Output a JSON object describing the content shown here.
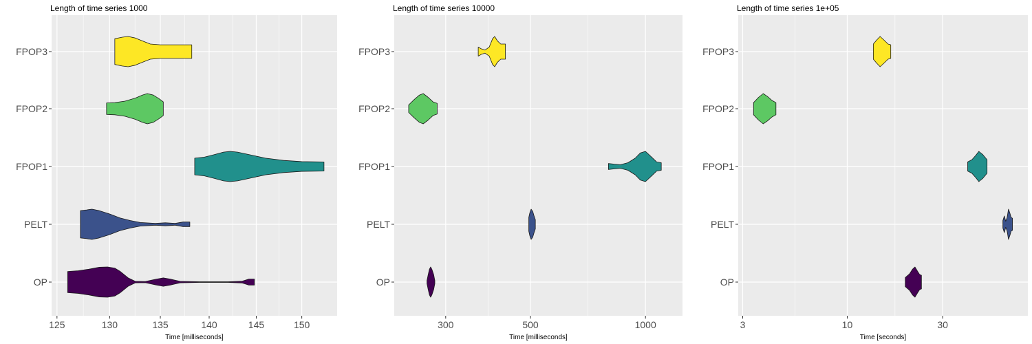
{
  "chart_data": [
    {
      "type": "violin",
      "title": "Length of time series  1000",
      "xlabel": "Time [milliseconds]",
      "ylabel": "",
      "x_scale": "log",
      "xlim": [
        124.5,
        154
      ],
      "xticks": [
        125,
        130,
        135,
        140,
        145,
        150
      ],
      "xtick_labels": [
        "125",
        "130",
        "135",
        "140",
        "145",
        "150"
      ],
      "categories": [
        "OP",
        "PELT",
        "FPOP1",
        "FPOP2",
        "FPOP3"
      ],
      "series": [
        {
          "category": "OP",
          "color": "#440154",
          "min": 126,
          "max": 144.8,
          "density": [
            [
              126,
              0.7
            ],
            [
              127,
              0.75
            ],
            [
              128,
              0.85
            ],
            [
              129,
              0.98
            ],
            [
              129.8,
              1.0
            ],
            [
              130.5,
              0.92
            ],
            [
              131,
              0.72
            ],
            [
              131.8,
              0.28
            ],
            [
              132.5,
              0.05
            ],
            [
              133.5,
              0.04
            ],
            [
              134.5,
              0.18
            ],
            [
              135.3,
              0.28
            ],
            [
              136,
              0.2
            ],
            [
              137,
              0.05
            ],
            [
              139,
              0.02
            ],
            [
              142,
              0.02
            ],
            [
              143.5,
              0.06
            ],
            [
              144.2,
              0.2
            ],
            [
              144.8,
              0.2
            ]
          ]
        },
        {
          "category": "PELT",
          "color": "#3B528B",
          "min": 127.2,
          "max": 138,
          "density": [
            [
              127.2,
              0.9
            ],
            [
              127.8,
              0.95
            ],
            [
              128.3,
              1.0
            ],
            [
              129,
              0.9
            ],
            [
              130,
              0.68
            ],
            [
              131,
              0.42
            ],
            [
              132,
              0.25
            ],
            [
              133,
              0.12
            ],
            [
              134.5,
              0.06
            ],
            [
              135.5,
              0.1
            ],
            [
              136.5,
              0.06
            ],
            [
              137.3,
              0.15
            ],
            [
              138,
              0.15
            ]
          ]
        },
        {
          "category": "FPOP1",
          "color": "#21908C",
          "min": 138.5,
          "max": 152.5,
          "density": [
            [
              138.5,
              0.55
            ],
            [
              139.5,
              0.62
            ],
            [
              140.5,
              0.78
            ],
            [
              141.5,
              0.95
            ],
            [
              142.2,
              1.0
            ],
            [
              143,
              0.95
            ],
            [
              144.5,
              0.75
            ],
            [
              146,
              0.55
            ],
            [
              148,
              0.4
            ],
            [
              150,
              0.32
            ],
            [
              152.5,
              0.3
            ]
          ]
        },
        {
          "category": "FPOP2",
          "color": "#5DC863",
          "min": 129.7,
          "max": 135.3,
          "density": [
            [
              129.7,
              0.38
            ],
            [
              130.5,
              0.4
            ],
            [
              131.5,
              0.5
            ],
            [
              132.5,
              0.7
            ],
            [
              133.2,
              0.9
            ],
            [
              133.7,
              1.0
            ],
            [
              134.3,
              0.9
            ],
            [
              134.9,
              0.65
            ],
            [
              135.3,
              0.45
            ]
          ]
        },
        {
          "category": "FPOP3",
          "color": "#FDE725",
          "min": 130.5,
          "max": 138.2,
          "density": [
            [
              130.5,
              0.85
            ],
            [
              131.2,
              0.95
            ],
            [
              131.8,
              1.0
            ],
            [
              132.5,
              0.9
            ],
            [
              133.3,
              0.68
            ],
            [
              134,
              0.5
            ],
            [
              135,
              0.45
            ],
            [
              136.5,
              0.45
            ],
            [
              138.2,
              0.45
            ]
          ]
        }
      ]
    },
    {
      "type": "violin",
      "title": "Length of time series  10000",
      "xlabel": "Time [milliseconds]",
      "ylabel": "",
      "x_scale": "log",
      "xlim": [
        220,
        1250
      ],
      "xticks": [
        300,
        500,
        1000
      ],
      "xtick_labels": [
        "300",
        "500",
        "1000"
      ],
      "categories": [
        "OP",
        "PELT",
        "FPOP1",
        "FPOP2",
        "FPOP3"
      ],
      "series": [
        {
          "category": "OP",
          "color": "#440154",
          "min": 268,
          "max": 281,
          "density": [
            [
              268,
              0.1
            ],
            [
              270,
              0.5
            ],
            [
              272,
              0.85
            ],
            [
              274,
              1.0
            ],
            [
              276,
              0.85
            ],
            [
              279,
              0.5
            ],
            [
              281,
              0.1
            ]
          ]
        },
        {
          "category": "PELT",
          "color": "#3B528B",
          "min": 495,
          "max": 515,
          "density": [
            [
              495,
              0.45
            ],
            [
              498,
              0.75
            ],
            [
              502,
              1.0
            ],
            [
              507,
              0.85
            ],
            [
              511,
              0.55
            ],
            [
              515,
              0.3
            ]
          ]
        },
        {
          "category": "FPOP1",
          "color": "#21908C",
          "min": 800,
          "max": 1100,
          "density": [
            [
              800,
              0.2
            ],
            [
              830,
              0.15
            ],
            [
              860,
              0.12
            ],
            [
              900,
              0.25
            ],
            [
              940,
              0.55
            ],
            [
              970,
              0.9
            ],
            [
              1000,
              1.0
            ],
            [
              1040,
              0.6
            ],
            [
              1070,
              0.3
            ],
            [
              1100,
              0.25
            ]
          ]
        },
        {
          "category": "FPOP2",
          "color": "#5DC863",
          "min": 240,
          "max": 285,
          "density": [
            [
              240,
              0.25
            ],
            [
              248,
              0.6
            ],
            [
              256,
              0.9
            ],
            [
              262,
              1.0
            ],
            [
              270,
              0.75
            ],
            [
              278,
              0.45
            ],
            [
              285,
              0.35
            ]
          ]
        },
        {
          "category": "FPOP3",
          "color": "#FDE725",
          "min": 365,
          "max": 430,
          "density": [
            [
              365,
              0.3
            ],
            [
              372,
              0.18
            ],
            [
              380,
              0.1
            ],
            [
              390,
              0.3
            ],
            [
              398,
              0.85
            ],
            [
              403,
              1.0
            ],
            [
              410,
              0.7
            ],
            [
              418,
              0.5
            ],
            [
              425,
              0.5
            ],
            [
              430,
              0.5
            ]
          ]
        }
      ]
    },
    {
      "type": "violin",
      "title": "Length of time series  1e+05",
      "xlabel": "Time [seconds]",
      "ylabel": "",
      "x_scale": "log",
      "xlim": [
        2.85,
        80
      ],
      "xticks": [
        3,
        10,
        30
      ],
      "xtick_labels": [
        "3",
        "10",
        "30"
      ],
      "categories": [
        "OP",
        "PELT",
        "FPOP1",
        "FPOP2",
        "FPOP3"
      ],
      "series": [
        {
          "category": "OP",
          "color": "#440154",
          "min": 19.5,
          "max": 23.5,
          "density": [
            [
              19.5,
              0.3
            ],
            [
              20.5,
              0.55
            ],
            [
              21.2,
              0.85
            ],
            [
              21.8,
              1.0
            ],
            [
              22.5,
              0.7
            ],
            [
              23,
              0.5
            ],
            [
              23.5,
              0.45
            ]
          ]
        },
        {
          "category": "PELT",
          "color": "#3B528B",
          "min": 60,
          "max": 67,
          "density": [
            [
              60,
              0.25
            ],
            [
              61,
              0.55
            ],
            [
              62,
              0.2
            ],
            [
              63,
              0.45
            ],
            [
              64,
              1.0
            ],
            [
              65,
              0.75
            ],
            [
              66,
              0.45
            ],
            [
              67,
              0.4
            ]
          ]
        },
        {
          "category": "FPOP1",
          "color": "#21908C",
          "min": 40,
          "max": 50,
          "density": [
            [
              40,
              0.3
            ],
            [
              42,
              0.45
            ],
            [
              44,
              0.75
            ],
            [
              45.5,
              1.0
            ],
            [
              47.5,
              0.8
            ],
            [
              50,
              0.45
            ]
          ]
        },
        {
          "category": "FPOP2",
          "color": "#5DC863",
          "min": 3.4,
          "max": 4.4,
          "density": [
            [
              3.4,
              0.4
            ],
            [
              3.6,
              0.75
            ],
            [
              3.8,
              1.0
            ],
            [
              4.0,
              0.8
            ],
            [
              4.2,
              0.55
            ],
            [
              4.4,
              0.4
            ]
          ]
        },
        {
          "category": "FPOP3",
          "color": "#FDE725",
          "min": 13.5,
          "max": 16.5,
          "density": [
            [
              13.5,
              0.5
            ],
            [
              14,
              0.75
            ],
            [
              14.6,
              1.0
            ],
            [
              15.3,
              0.75
            ],
            [
              16,
              0.5
            ],
            [
              16.5,
              0.45
            ]
          ]
        }
      ]
    }
  ]
}
